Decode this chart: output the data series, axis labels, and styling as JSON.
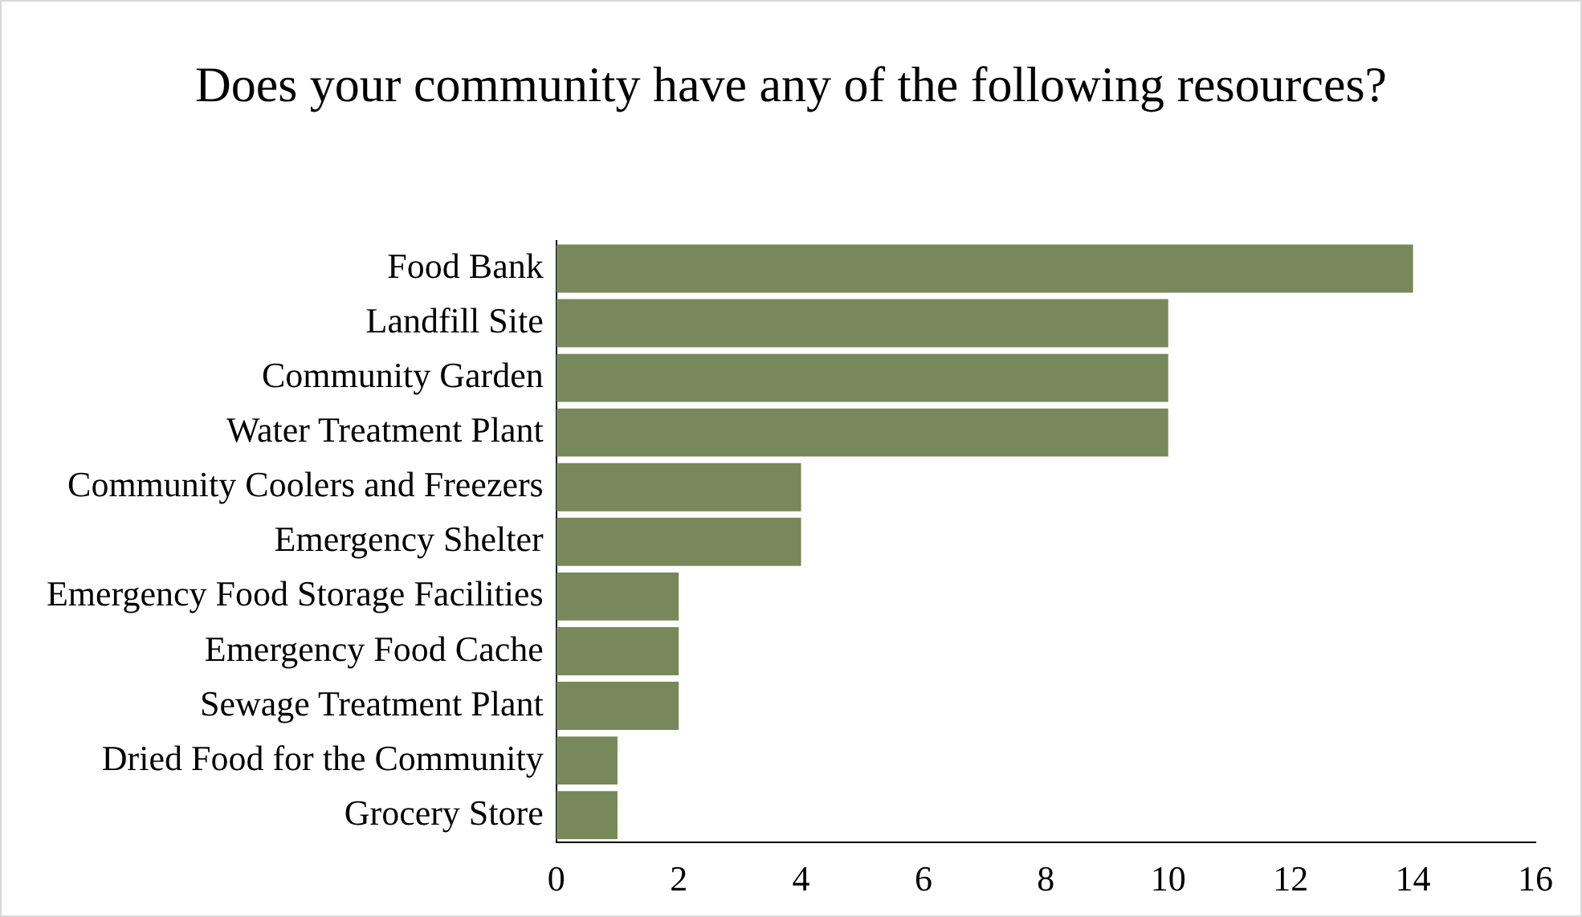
{
  "chart_data": {
    "type": "bar",
    "orientation": "horizontal",
    "title": "Does your community have any of the following resources?",
    "categories": [
      "Food Bank",
      "Landfill Site",
      "Community Garden",
      "Water Treatment Plant",
      "Community Coolers and Freezers",
      "Emergency Shelter",
      "Emergency Food Storage Facilities",
      "Emergency Food Cache",
      "Sewage Treatment Plant",
      "Dried Food for the Community",
      "Grocery Store"
    ],
    "values": [
      14,
      10,
      10,
      10,
      4,
      4,
      2,
      2,
      2,
      1,
      1
    ],
    "color": "#77885a",
    "xlim": [
      0,
      16
    ],
    "xticks": [
      0,
      2,
      4,
      6,
      8,
      10,
      12,
      14,
      16
    ],
    "grid": false,
    "legend": false
  }
}
